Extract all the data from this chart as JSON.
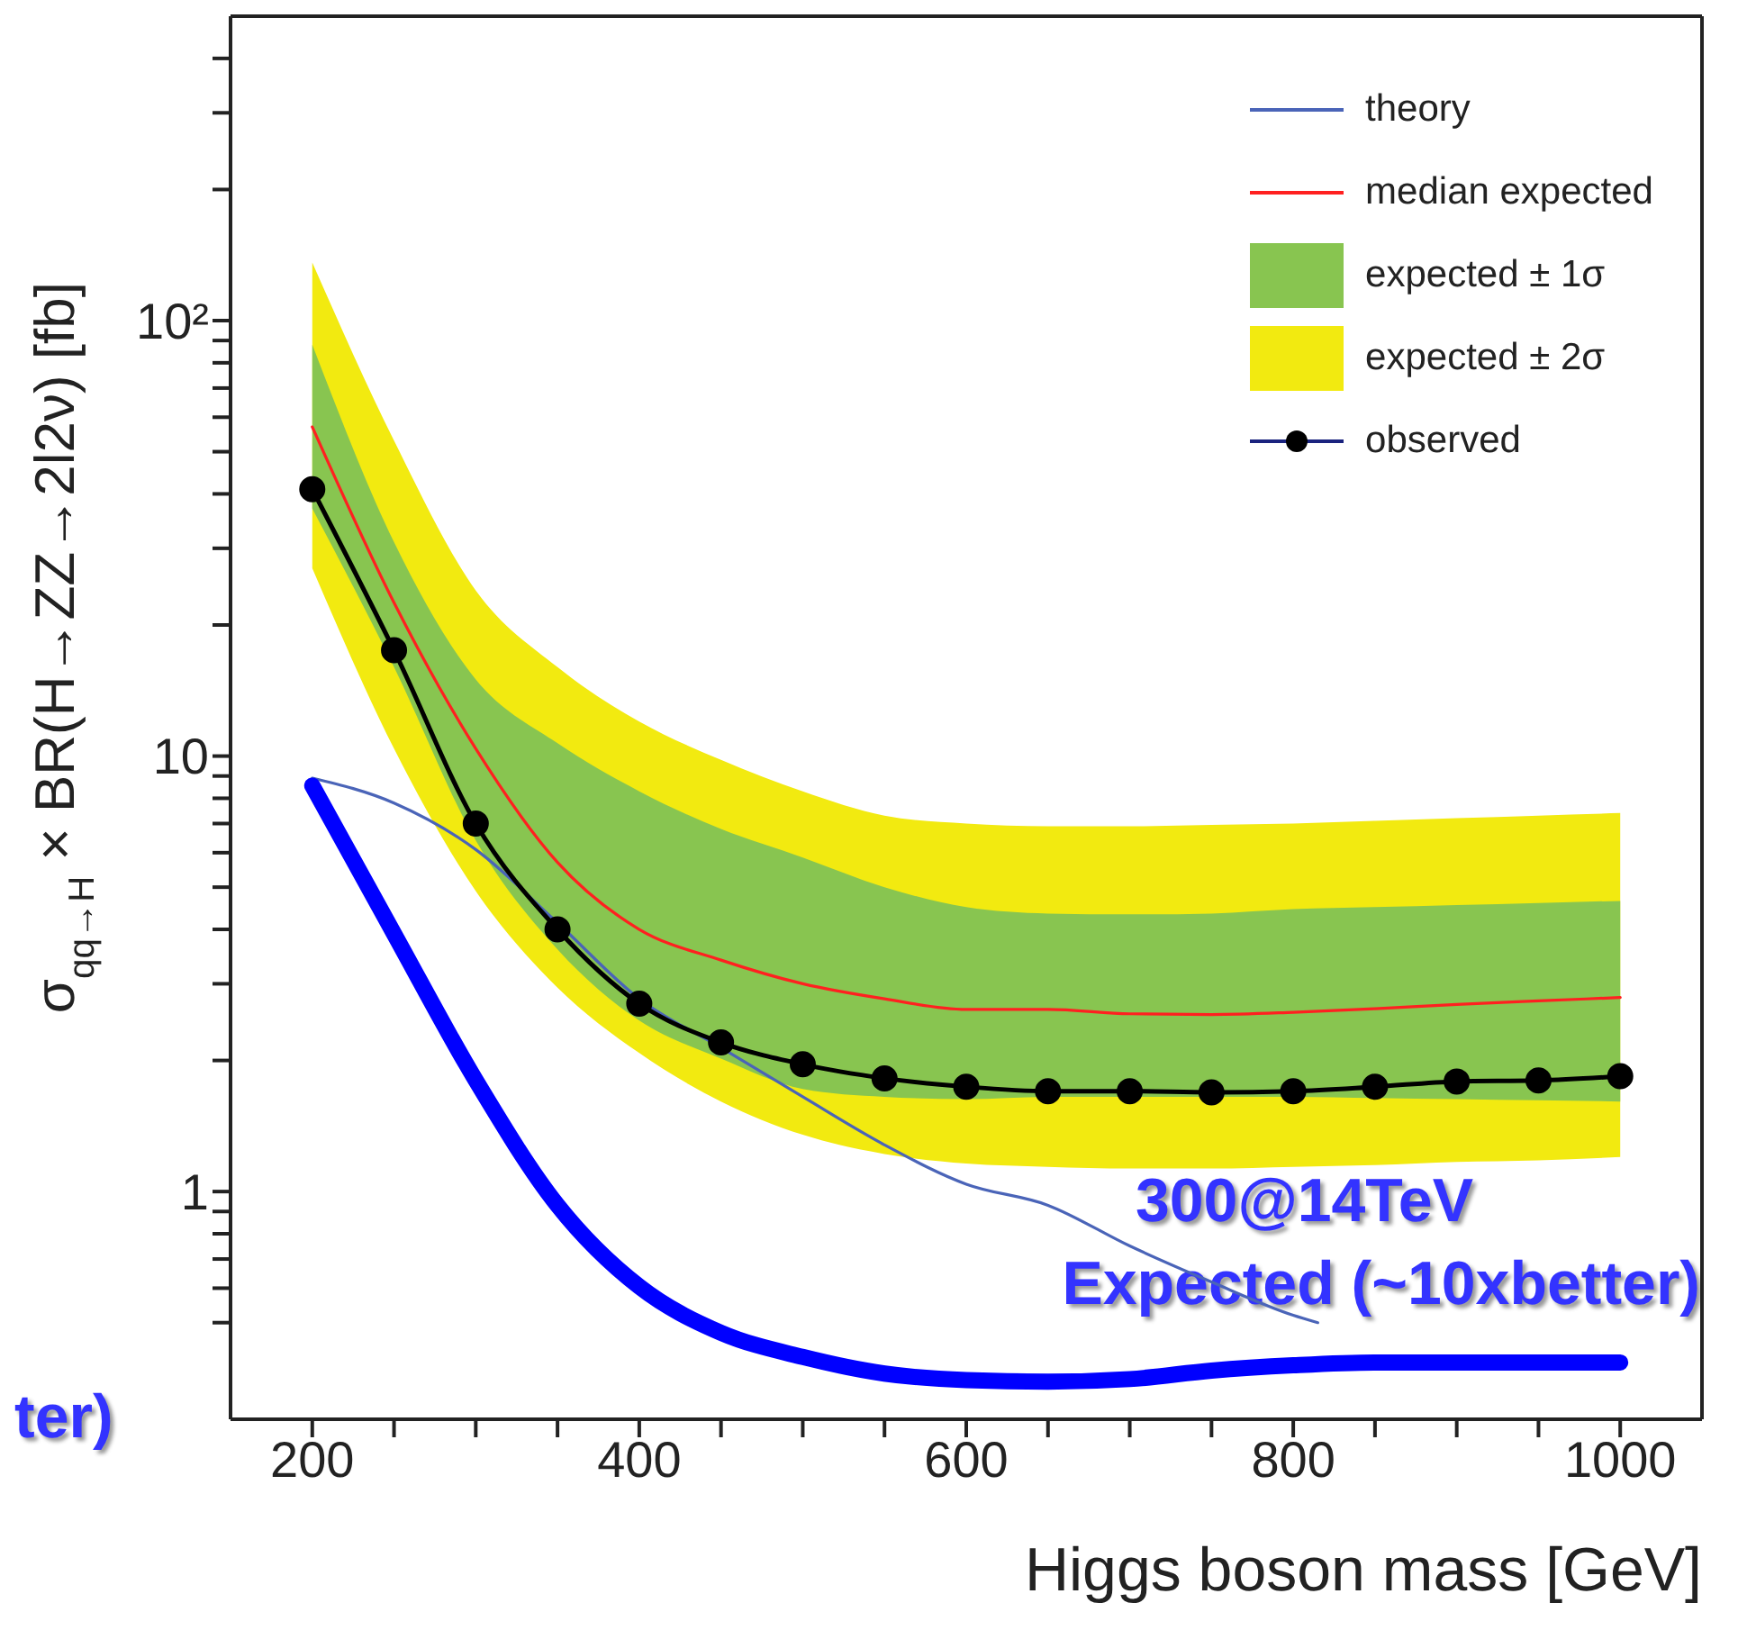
{
  "chart_data": {
    "type": "line",
    "xlabel": "Higgs boson mass [GeV]",
    "ylabel": "σ$_{qq→H}$ × BR(H→ZZ→2l2ν) [fb]",
    "x": [
      200,
      250,
      300,
      350,
      400,
      450,
      500,
      550,
      600,
      650,
      700,
      750,
      800,
      850,
      900,
      950,
      1000
    ],
    "series": [
      {
        "name": "theory",
        "type": "line",
        "color": "#4a64b8",
        "x": [
          200,
          250,
          300,
          350,
          400,
          450,
          500,
          550,
          600,
          650,
          700,
          750,
          800,
          815
        ],
        "values": [
          8.9,
          7.8,
          6.1,
          4.14,
          2.77,
          2.14,
          1.65,
          1.28,
          1.04,
          0.93,
          0.75,
          0.62,
          0.52,
          0.5
        ]
      },
      {
        "name": "median expected",
        "type": "line",
        "color": "#ff2020",
        "values": [
          57,
          22.5,
          10.4,
          5.7,
          4.0,
          3.4,
          3.0,
          2.77,
          2.62,
          2.62,
          2.56,
          2.55,
          2.58,
          2.63,
          2.69,
          2.74,
          2.79
        ]
      },
      {
        "name": "expected ± 1σ",
        "type": "area",
        "color": "#88c550",
        "values": [
          null,
          null,
          null,
          null,
          null,
          null,
          null,
          null,
          null,
          null,
          null,
          null,
          null,
          null,
          null,
          null,
          null
        ],
        "lower": [
          37,
          16,
          6.4,
          3.6,
          2.47,
          2.02,
          1.72,
          1.65,
          1.63,
          1.65,
          1.65,
          1.65,
          1.65,
          1.64,
          1.63,
          1.62,
          1.61
        ],
        "upper": [
          88,
          31,
          15,
          10.7,
          8.3,
          6.8,
          5.85,
          5.0,
          4.5,
          4.35,
          4.33,
          4.35,
          4.45,
          4.5,
          4.55,
          4.6,
          4.65
        ]
      },
      {
        "name": "expected ± 2σ",
        "type": "area",
        "color": "#f2ea10",
        "values": [
          null,
          null,
          null,
          null,
          null,
          null,
          null,
          null,
          null,
          null,
          null,
          null,
          null,
          null,
          null,
          null,
          null
        ],
        "lower": [
          27,
          10.4,
          4.9,
          2.94,
          2.08,
          1.61,
          1.35,
          1.22,
          1.16,
          1.14,
          1.13,
          1.13,
          1.14,
          1.15,
          1.17,
          1.18,
          1.2
        ],
        "upper": [
          136,
          53,
          24,
          16,
          12,
          9.8,
          8.3,
          7.3,
          7.0,
          6.9,
          6.9,
          6.95,
          7.0,
          7.1,
          7.2,
          7.3,
          7.4
        ]
      },
      {
        "name": "observed",
        "type": "line",
        "color": "#000000",
        "marker": "circle",
        "values": [
          41,
          17.5,
          7.0,
          4.0,
          2.7,
          2.2,
          1.96,
          1.82,
          1.74,
          1.7,
          1.7,
          1.69,
          1.7,
          1.74,
          1.79,
          1.8,
          1.84
        ]
      },
      {
        "type": "line",
        "color": "#0000ff",
        "values": [
          8.55,
          3.91,
          1.8,
          0.93,
          0.605,
          0.474,
          0.417,
          0.382,
          0.369,
          0.366,
          0.371,
          0.388,
          0.399,
          0.405,
          0.405,
          0.405,
          0.405
        ]
      }
    ],
    "log": "y",
    "xlim": [
      150,
      1050
    ],
    "ylim": [
      0.3,
      500
    ],
    "xticks": [
      200,
      {
        "value": 250,
        "label": null
      },
      {
        "value": 300,
        "label": null
      },
      {
        "value": 350,
        "label": null
      },
      400,
      {
        "value": 450,
        "label": null
      },
      {
        "value": 500,
        "label": null
      },
      {
        "value": 550,
        "label": null
      },
      600,
      {
        "value": 650,
        "label": null
      },
      {
        "value": 700,
        "label": null
      },
      {
        "value": 750,
        "label": null
      },
      800,
      {
        "value": 850,
        "label": null
      },
      {
        "value": 900,
        "label": null
      },
      {
        "value": 950,
        "label": null
      },
      1000
    ],
    "yticks": [
      {
        "value": 0.5,
        "label": null
      },
      {
        "value": 0.6,
        "label": null
      },
      {
        "value": 0.7,
        "label": null
      },
      {
        "value": 0.8,
        "label": null
      },
      {
        "value": 0.9,
        "label": null
      },
      1,
      {
        "value": 2,
        "label": null
      },
      {
        "value": 3,
        "label": null
      },
      {
        "value": 4,
        "label": null
      },
      {
        "value": 5,
        "label": null
      },
      {
        "value": 6,
        "label": null
      },
      {
        "value": 7,
        "label": null
      },
      {
        "value": 8,
        "label": null
      },
      {
        "value": 9,
        "label": null
      },
      10,
      {
        "value": 20,
        "label": null
      },
      {
        "value": 30,
        "label": null
      },
      {
        "value": 40,
        "label": null
      },
      {
        "value": 50,
        "label": null
      },
      {
        "value": 60,
        "label": null
      },
      {
        "value": 70,
        "label": null
      },
      {
        "value": 80,
        "label": null
      },
      {
        "value": 90,
        "label": null
      },
      {
        "value": 100,
        "label": "10²"
      },
      {
        "value": 200,
        "label": null
      },
      {
        "value": 300,
        "label": null
      },
      {
        "value": 400,
        "label": null
      }
    ],
    "grid": false,
    "legend": "top right",
    "annotations": [
      "300@14TeV",
      "Expected (~10xbetter)",
      "ter)"
    ]
  }
}
